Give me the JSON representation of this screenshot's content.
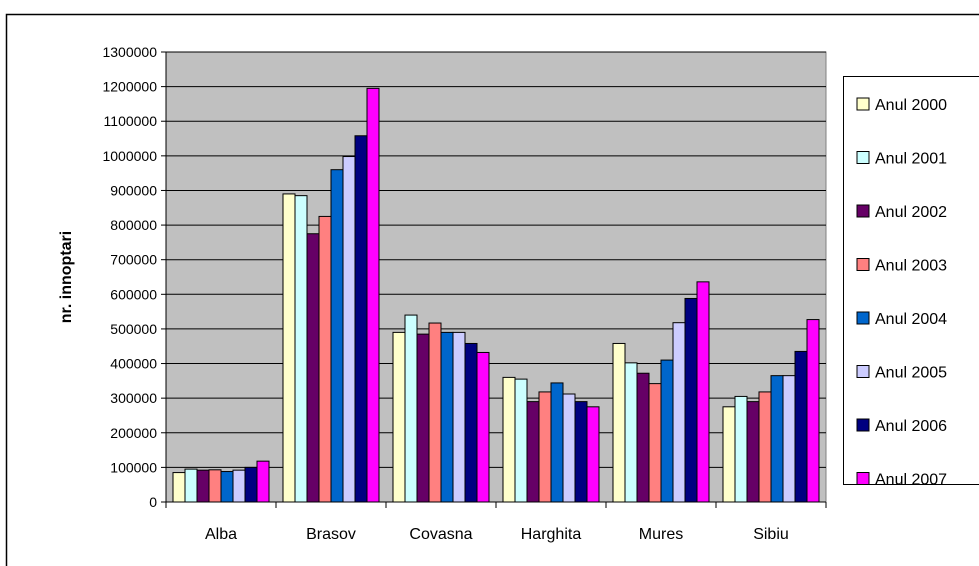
{
  "chart_data": {
    "type": "bar",
    "title": "",
    "xlabel": "",
    "ylabel": "nr. innoptari",
    "ylim": [
      0,
      1300000
    ],
    "ytick_step": 100000,
    "categories": [
      "Alba",
      "Brasov",
      "Covasna",
      "Harghita",
      "Mures",
      "Sibiu"
    ],
    "series": [
      {
        "name": "Anul 2000",
        "color": "#FFFFCC",
        "values": [
          85000,
          890000,
          490000,
          360000,
          458000,
          275000
        ]
      },
      {
        "name": "Anul 2001",
        "color": "#CCFFFF",
        "values": [
          95000,
          885000,
          540000,
          355000,
          402000,
          305000
        ]
      },
      {
        "name": "Anul 2002",
        "color": "#660066",
        "values": [
          92000,
          775000,
          485000,
          290000,
          372000,
          290000
        ]
      },
      {
        "name": "Anul 2003",
        "color": "#FF8080",
        "values": [
          93000,
          825000,
          517000,
          318000,
          342000,
          318000
        ]
      },
      {
        "name": "Anul 2004",
        "color": "#0066CC",
        "values": [
          88000,
          960000,
          490000,
          344000,
          410000,
          365000
        ]
      },
      {
        "name": "Anul 2005",
        "color": "#CCCCFF",
        "values": [
          92000,
          998000,
          490000,
          312000,
          518000,
          365000
        ]
      },
      {
        "name": "Anul 2006",
        "color": "#000080",
        "values": [
          100000,
          1058000,
          458000,
          290000,
          588000,
          435000
        ]
      },
      {
        "name": "Anul 2007",
        "color": "#FF00FF",
        "values": [
          118000,
          1195000,
          432000,
          275000,
          636000,
          527000
        ]
      }
    ],
    "grid": true,
    "plot_background": "#C0C0C0",
    "legend_position": "right"
  }
}
